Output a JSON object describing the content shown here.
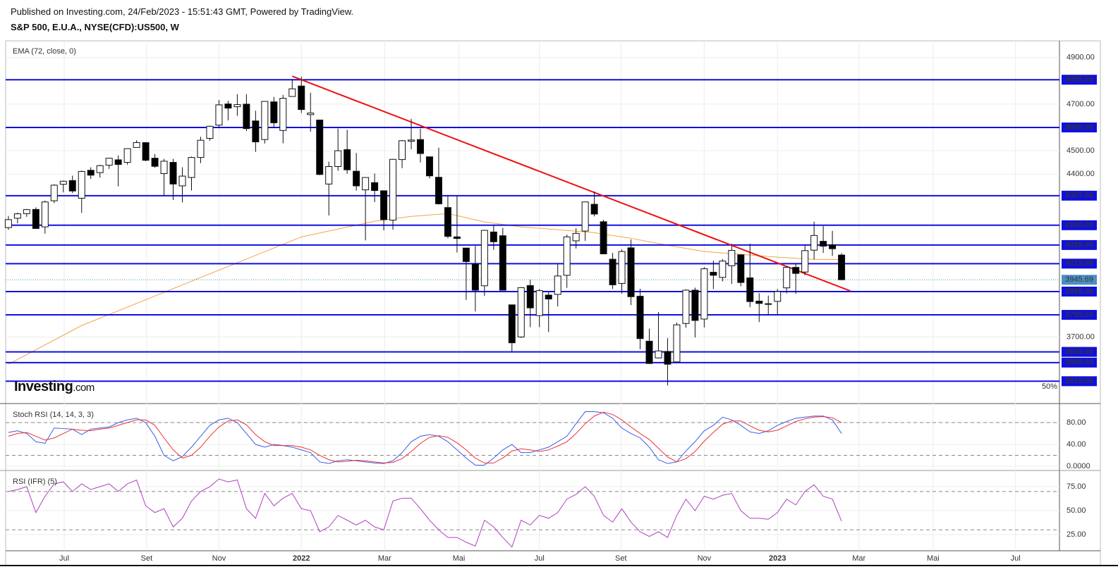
{
  "header": {
    "published": "Published on Investing.com, 24/Feb/2023 - 15:51:43 GMT, Powered by TradingView.",
    "symbol": "S&P 500, E.U.A., NYSE(CFD):US500, W"
  },
  "logo": {
    "brand": "Investing",
    "suffix": ".com"
  },
  "chart_data": [
    {
      "type": "candlestick",
      "xlim": [
        -0.3,
        114.8
      ],
      "xticks": [
        {
          "value": 6.1,
          "label": "Jul"
        },
        {
          "value": 15.1,
          "label": "Set"
        },
        {
          "value": 23.0,
          "label": "Nov"
        },
        {
          "value": 32.0,
          "label": "2022"
        },
        {
          "value": 41.1,
          "label": "Mar"
        },
        {
          "value": 49.2,
          "label": "Mai"
        },
        {
          "value": 58.0,
          "label": "Jul"
        },
        {
          "value": 66.9,
          "label": "Set"
        },
        {
          "value": 76.0,
          "label": "Nov"
        },
        {
          "value": 84.0,
          "label": "2023"
        },
        {
          "value": 92.9,
          "label": "Mar"
        },
        {
          "value": 101.0,
          "label": "Mai"
        },
        {
          "value": 110.0,
          "label": "Jul"
        }
      ],
      "ylim": [
        3414,
        4972
      ],
      "yticks": [
        {
          "value": 3700,
          "label": "3700.00"
        },
        {
          "value": 4400,
          "label": "4400.00"
        },
        {
          "value": 4500,
          "label": "4500.00"
        },
        {
          "value": 4700,
          "label": "4700.00"
        },
        {
          "value": 4900,
          "label": "4900.00"
        }
      ],
      "x": [
        0,
        1,
        2,
        3,
        4,
        5,
        6,
        7,
        8,
        9,
        10,
        11,
        12,
        13,
        14,
        15,
        16,
        17,
        18,
        19,
        20,
        21,
        22,
        23,
        24,
        25,
        26,
        27,
        28,
        29,
        30,
        31,
        32,
        33,
        34,
        35,
        36,
        37,
        38,
        39,
        40,
        41,
        42,
        43,
        44,
        45,
        46,
        47,
        48,
        49,
        50,
        51,
        52,
        53,
        54,
        55,
        56,
        57,
        58,
        59,
        60,
        61,
        62,
        63,
        64,
        65,
        66,
        67,
        68,
        69,
        70,
        71,
        72,
        73,
        74,
        75,
        76,
        77,
        78,
        79,
        80,
        81,
        82,
        83,
        84,
        85,
        86,
        87,
        88,
        89,
        90,
        91
      ],
      "open": [
        4170,
        4210,
        4230,
        4248,
        4173,
        4285,
        4356,
        4372,
        4296,
        4416,
        4406,
        4438,
        4461,
        4450,
        4514,
        4535,
        4468,
        4402,
        4450,
        4349,
        4385,
        4471,
        4553,
        4610,
        4701,
        4689,
        4700,
        4628,
        4548,
        4710,
        4587,
        4733,
        4778,
        4655,
        4632,
        4357,
        4432,
        4505,
        4412,
        4332,
        4363,
        4328,
        4202,
        4462,
        4541,
        4548,
        4474,
        4386,
        4256,
        4130,
        4082,
        4013,
        3920,
        4151,
        4135,
        3838,
        3700,
        3921,
        3792,
        3880,
        3883,
        3965,
        4113,
        4155,
        4270,
        4195,
        4034,
        3930,
        4083,
        3875,
        3682,
        3610,
        3638,
        3593,
        3758,
        3901,
        3777,
        3978,
        3956,
        4006,
        4053,
        3954,
        3854,
        3843,
        3853,
        3911,
        3999,
        3979,
        4073,
        4111,
        4096,
        4052
      ],
      "high": [
        4220,
        4234,
        4250,
        4257,
        4286,
        4356,
        4372,
        4393,
        4415,
        4429,
        4440,
        4469,
        4480,
        4510,
        4545,
        4536,
        4486,
        4465,
        4465,
        4429,
        4475,
        4560,
        4608,
        4718,
        4714,
        4743,
        4743,
        4672,
        4713,
        4731,
        4740,
        4808,
        4818,
        4749,
        4632,
        4453,
        4595,
        4590,
        4490,
        4385,
        4402,
        4329,
        4465,
        4546,
        4637,
        4594,
        4474,
        4513,
        4309,
        4308,
        4082,
        4091,
        4160,
        4181,
        4169,
        3838,
        3914,
        3946,
        3906,
        3893,
        4012,
        4140,
        4167,
        4281,
        4325,
        4203,
        4061,
        4076,
        4119,
        3907,
        3736,
        3807,
        3695,
        3762,
        3905,
        3912,
        4000,
        4028,
        4035,
        4100,
        4053,
        4101,
        3888,
        3878,
        3906,
        4003,
        4015,
        4094,
        4195,
        4176,
        4156,
        4060
      ],
      "low": [
        4160,
        4188,
        4216,
        4165,
        4144,
        4275,
        4321,
        4318,
        4233,
        4379,
        4385,
        4422,
        4347,
        4440,
        4514,
        4455,
        4427,
        4306,
        4288,
        4278,
        4329,
        4447,
        4543,
        4596,
        4630,
        4650,
        4585,
        4495,
        4531,
        4600,
        4532,
        4733,
        4662,
        4582,
        4395,
        4222,
        4414,
        4401,
        4329,
        4115,
        4279,
        4158,
        4161,
        4425,
        4506,
        4450,
        4381,
        4269,
        4124,
        4063,
        3859,
        3810,
        3876,
        4074,
        3900,
        3637,
        3696,
        3742,
        3742,
        3721,
        3831,
        3911,
        4080,
        4113,
        4218,
        4057,
        3906,
        3886,
        3837,
        3647,
        3584,
        3608,
        3492,
        3590,
        3740,
        3698,
        3741,
        3906,
        3939,
        3928,
        3918,
        3828,
        3764,
        3797,
        3794,
        3887,
        3885,
        3965,
        4033,
        4061,
        4048,
        3943
      ],
      "close": [
        4204,
        4229,
        4247,
        4166,
        4280,
        4352,
        4369,
        4327,
        4411,
        4395,
        4436,
        4468,
        4441,
        4509,
        4535,
        4459,
        4433,
        4455,
        4357,
        4391,
        4471,
        4545,
        4605,
        4697,
        4683,
        4698,
        4595,
        4538,
        4712,
        4620,
        4725,
        4766,
        4677,
        4662,
        4398,
        4432,
        4500,
        4418,
        4349,
        4385,
        4329,
        4204,
        4463,
        4543,
        4546,
        4488,
        4392,
        4272,
        4132,
        4123,
        4024,
        3901,
        4158,
        4109,
        3901,
        3675,
        3912,
        3825,
        3899,
        3863,
        3962,
        4130,
        4145,
        4280,
        4228,
        4057,
        3924,
        4067,
        3873,
        3693,
        3586,
        3640,
        3583,
        3752,
        3901,
        3771,
        3993,
        3965,
        4026,
        4072,
        3934,
        3852,
        3844,
        3840,
        3895,
        3999,
        3973,
        4071,
        4136,
        4090,
        4079,
        3946
      ],
      "ema": {
        "name": "EMA (72, close, 0)",
        "color": "#f5a345",
        "x": [
          0,
          8,
          16,
          24,
          32,
          40,
          44,
          48,
          52,
          56,
          60,
          64,
          68,
          72,
          76,
          80,
          84,
          88,
          91
        ],
        "values": [
          3583,
          3749,
          3876,
          4003,
          4130,
          4197,
          4218,
          4230,
          4194,
          4173,
          4161,
          4148,
          4124,
          4094,
          4067,
          4055,
          4043,
          4033,
          4033
        ]
      },
      "levels": {
        "color": "#1010e0",
        "lines": [
          {
            "value": 4805,
            "label": "4805.00"
          },
          {
            "value": 4600,
            "label": "4600.00"
          },
          {
            "value": 4307,
            "label": "4307.00"
          },
          {
            "value": 4180,
            "label": "4180.00"
          },
          {
            "value": 4095,
            "label": "4095.00"
          },
          {
            "value": 4015,
            "label": "4015.00"
          },
          {
            "value": 3895,
            "label": "3895.00"
          },
          {
            "value": 3795,
            "label": "3795.00"
          },
          {
            "value": 3636,
            "label": "3636.00"
          },
          {
            "value": 3590,
            "label": "3590.00"
          },
          {
            "value": 3510,
            "label": "3510.00"
          }
        ]
      },
      "last_price": {
        "value": 3945.69,
        "label": "3945.69",
        "color": "#4a8fc4"
      },
      "trendline": {
        "color": "#ee1111",
        "x": [
          31,
          92
        ],
        "values": [
          4820,
          3897
        ]
      },
      "annotation": "50%"
    },
    {
      "type": "line",
      "title": "Stoch RSI (14, 14, 3, 3)",
      "ylim": [
        -7.7,
        113.6
      ],
      "yticks": [
        {
          "value": 0,
          "label": "0.0000"
        },
        {
          "value": 40,
          "label": "40.00"
        },
        {
          "value": 80,
          "label": "80.00"
        }
      ],
      "hlines": [
        20,
        80
      ],
      "x": [
        0,
        1,
        2,
        3,
        4,
        5,
        6,
        7,
        8,
        9,
        10,
        11,
        12,
        13,
        14,
        15,
        16,
        17,
        18,
        19,
        20,
        21,
        22,
        23,
        24,
        25,
        26,
        27,
        28,
        29,
        30,
        31,
        32,
        33,
        34,
        35,
        36,
        37,
        38,
        39,
        40,
        41,
        42,
        43,
        44,
        45,
        46,
        47,
        48,
        49,
        50,
        51,
        52,
        53,
        54,
        55,
        56,
        57,
        58,
        59,
        60,
        61,
        62,
        63,
        64,
        65,
        66,
        67,
        68,
        69,
        70,
        71,
        72,
        73,
        74,
        75,
        76,
        77,
        78,
        79,
        80,
        81,
        82,
        83,
        84,
        85,
        86,
        87,
        88,
        89,
        90,
        91
      ],
      "series": [
        {
          "color": "#3a5ee8",
          "values": [
            62,
            65,
            60,
            45,
            42,
            70,
            69,
            68,
            58,
            68,
            70,
            72,
            80,
            85,
            88,
            80,
            55,
            20,
            10,
            18,
            35,
            55,
            75,
            85,
            88,
            80,
            60,
            40,
            35,
            40,
            38,
            35,
            30,
            25,
            8,
            5,
            10,
            12,
            10,
            8,
            6,
            5,
            10,
            25,
            45,
            55,
            58,
            55,
            45,
            30,
            15,
            2,
            2,
            15,
            30,
            40,
            25,
            25,
            30,
            35,
            45,
            55,
            78,
            100,
            100,
            98,
            88,
            70,
            60,
            52,
            35,
            12,
            5,
            8,
            28,
            45,
            65,
            75,
            90,
            85,
            75,
            63,
            60,
            65,
            75,
            82,
            88,
            90,
            92,
            92,
            85,
            60
          ]
        },
        {
          "color": "#ee3333",
          "values": [
            55,
            60,
            62,
            55,
            48,
            52,
            60,
            68,
            66,
            65,
            68,
            70,
            75,
            80,
            85,
            85,
            75,
            52,
            30,
            15,
            20,
            35,
            55,
            72,
            83,
            85,
            76,
            58,
            45,
            38,
            38,
            38,
            35,
            30,
            20,
            12,
            8,
            9,
            11,
            10,
            8,
            6,
            7,
            14,
            27,
            42,
            53,
            56,
            53,
            43,
            30,
            15,
            6,
            6,
            15,
            28,
            32,
            30,
            27,
            30,
            37,
            45,
            60,
            78,
            92,
            99,
            95,
            85,
            72,
            60,
            49,
            33,
            17,
            8,
            14,
            27,
            46,
            62,
            77,
            83,
            83,
            74,
            66,
            63,
            66,
            74,
            82,
            87,
            90,
            91,
            89,
            80
          ]
        }
      ]
    },
    {
      "type": "line",
      "title": "RSI (IFR) (5)",
      "ylim": [
        8.1,
        91.2
      ],
      "yticks": [
        {
          "value": 25,
          "label": "25.00"
        },
        {
          "value": 50,
          "label": "50.00"
        },
        {
          "value": 75,
          "label": "75.00"
        }
      ],
      "hlines": [
        30,
        70
      ],
      "x": [
        0,
        1,
        2,
        3,
        4,
        5,
        6,
        7,
        8,
        9,
        10,
        11,
        12,
        13,
        14,
        15,
        16,
        17,
        18,
        19,
        20,
        21,
        22,
        23,
        24,
        25,
        26,
        27,
        28,
        29,
        30,
        31,
        32,
        33,
        34,
        35,
        36,
        37,
        38,
        39,
        40,
        41,
        42,
        43,
        44,
        45,
        46,
        47,
        48,
        49,
        50,
        51,
        52,
        53,
        54,
        55,
        56,
        57,
        58,
        59,
        60,
        61,
        62,
        63,
        64,
        65,
        66,
        67,
        68,
        69,
        70,
        71,
        72,
        73,
        74,
        75,
        76,
        77,
        78,
        79,
        80,
        81,
        82,
        83,
        84,
        85,
        86,
        87,
        88,
        89,
        90,
        91
      ],
      "series": [
        {
          "color": "#b040c0",
          "values": [
            70,
            72,
            75,
            48,
            65,
            78,
            80,
            70,
            78,
            72,
            75,
            78,
            70,
            78,
            82,
            55,
            48,
            52,
            33,
            42,
            60,
            70,
            75,
            83,
            80,
            82,
            52,
            42,
            68,
            55,
            63,
            68,
            52,
            50,
            28,
            33,
            45,
            40,
            35,
            40,
            33,
            30,
            60,
            63,
            63,
            52,
            40,
            30,
            22,
            22,
            17,
            13,
            40,
            33,
            22,
            12,
            40,
            35,
            45,
            42,
            48,
            62,
            67,
            75,
            65,
            45,
            38,
            52,
            38,
            28,
            23,
            28,
            22,
            45,
            62,
            50,
            65,
            62,
            66,
            68,
            50,
            42,
            42,
            41,
            48,
            62,
            56,
            70,
            77,
            65,
            62,
            39
          ]
        }
      ]
    }
  ]
}
